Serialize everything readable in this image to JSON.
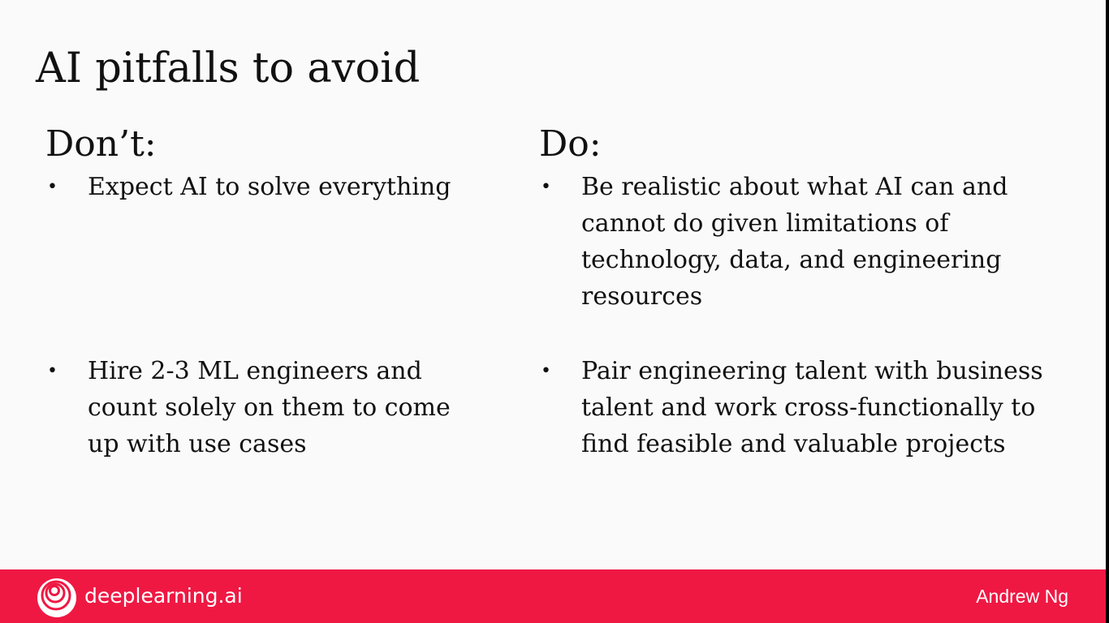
{
  "slide": {
    "title": "AI pitfalls to avoid",
    "dont": {
      "heading": "Don’t:",
      "bullets": [
        "Expect AI to solve everything",
        "Hire 2-3 ML engineers and count solely on them to come up with use cases"
      ]
    },
    "do": {
      "heading": "Do:",
      "bullets": [
        "Be realistic about what AI can and cannot do given limitations of technology, data, and engineering resources",
        "Pair engineering talent with business talent and work cross-functionally to find feasible and valuable projects"
      ]
    },
    "bullet_char": "•"
  },
  "footer": {
    "brand": "deeplearning.ai",
    "logo_icon": "deeplearning-logo-icon",
    "author": "Andrew Ng"
  },
  "colors": {
    "background": "#fafafa",
    "footer_red": "#ef1843",
    "text": "#111111"
  }
}
